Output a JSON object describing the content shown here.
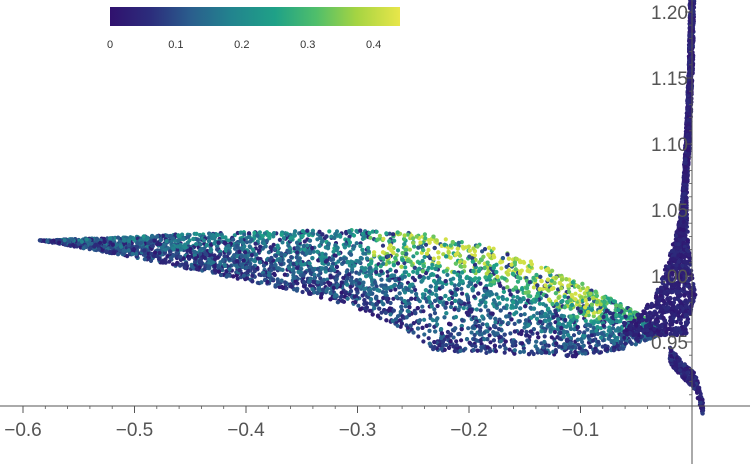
{
  "chart_data": {
    "type": "scatter",
    "title": "",
    "xlabel": "",
    "ylabel": "",
    "xlim": [
      -0.6,
      0.01
    ],
    "ylim": [
      0.9,
      1.21
    ],
    "x_ticks": [
      {
        "value": -0.6,
        "label": "−0.6"
      },
      {
        "value": -0.5,
        "label": "−0.5"
      },
      {
        "value": -0.4,
        "label": "−0.4"
      },
      {
        "value": -0.3,
        "label": "−0.3"
      },
      {
        "value": -0.2,
        "label": "−0.2"
      },
      {
        "value": -0.1,
        "label": "−0.1"
      }
    ],
    "y_ticks": [
      {
        "value": 0.95,
        "label": "0.95"
      },
      {
        "value": 1.0,
        "label": "1.00"
      },
      {
        "value": 1.05,
        "label": "1.05"
      },
      {
        "value": 1.1,
        "label": "1.10"
      },
      {
        "value": 1.15,
        "label": "1.15"
      },
      {
        "value": 1.2,
        "label": "1.20"
      }
    ],
    "colorbar": {
      "min": 0,
      "max": 0.44,
      "colormap": "viridis",
      "ticks": [
        {
          "value": 0,
          "label": "0"
        },
        {
          "value": 0.1,
          "label": "0.1"
        },
        {
          "value": 0.2,
          "label": "0.2"
        },
        {
          "value": 0.3,
          "label": "0.3"
        },
        {
          "value": 0.4,
          "label": "0.4"
        }
      ]
    },
    "colors": {
      "low": "#440154",
      "mid": "#21918c",
      "high": "#fde725",
      "axis": "#555555"
    },
    "regions": [
      {
        "name": "main lobe",
        "upper_edge": [
          [
            -0.585,
            1.027
          ],
          [
            -0.52,
            1.029
          ],
          [
            -0.45,
            1.032
          ],
          [
            -0.38,
            1.034
          ],
          [
            -0.3,
            1.035
          ],
          [
            -0.24,
            1.032
          ],
          [
            -0.18,
            1.022
          ],
          [
            -0.14,
            1.01
          ],
          [
            -0.1,
            0.995
          ],
          [
            -0.06,
            0.978
          ],
          [
            -0.03,
            0.962
          ]
        ],
        "lower_edge": [
          [
            -0.585,
            1.027
          ],
          [
            -0.5,
            1.014
          ],
          [
            -0.42,
            1.0
          ],
          [
            -0.35,
            0.988
          ],
          [
            -0.3,
            0.975
          ],
          [
            -0.26,
            0.96
          ],
          [
            -0.23,
            0.943
          ],
          [
            -0.16,
            0.941
          ],
          [
            -0.1,
            0.939
          ],
          [
            -0.06,
            0.945
          ],
          [
            -0.03,
            0.955
          ]
        ],
        "bright_ridge": [
          [
            -0.29,
            1.022
          ],
          [
            -0.2,
            1.02
          ],
          [
            -0.15,
            1.005
          ],
          [
            -0.12,
            0.988
          ],
          [
            -0.08,
            0.975
          ]
        ],
        "color_range": [
          0.0,
          0.42
        ]
      },
      {
        "name": "spike",
        "center_line": [
          [
            -0.035,
            0.955
          ],
          [
            -0.015,
            0.985
          ],
          [
            -0.008,
            1.04
          ],
          [
            -0.004,
            1.1
          ],
          [
            -0.001,
            1.16
          ],
          [
            0.0,
            1.21
          ]
        ],
        "tail": [
          [
            -0.02,
            0.94
          ],
          [
            -0.01,
            0.93
          ],
          [
            0.003,
            0.92
          ],
          [
            0.008,
            0.905
          ],
          [
            0.01,
            0.9
          ]
        ],
        "color_range": [
          0.0,
          0.08
        ]
      }
    ]
  }
}
